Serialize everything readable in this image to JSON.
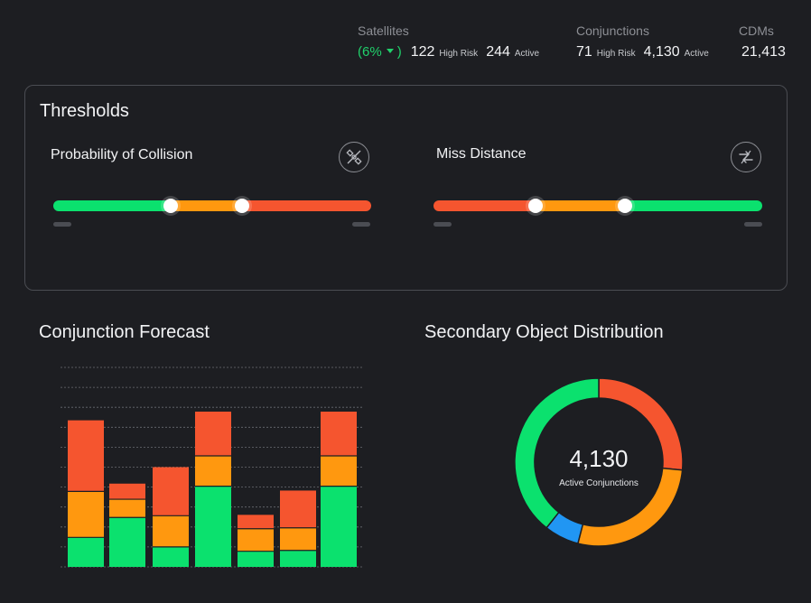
{
  "colors": {
    "green": "#0be16e",
    "orange": "#ff980f",
    "red": "#f5552f",
    "blue": "#2196f3",
    "up": "#20d16b"
  },
  "header": {
    "satellites": {
      "label": "Satellites",
      "trend": "(6%",
      "trend_close": ")",
      "high_risk_value": "122",
      "high_risk_unit": "High Risk",
      "active_value": "244",
      "active_unit": "Active"
    },
    "conjunctions": {
      "label": "Conjunctions",
      "high_risk_value": "71",
      "high_risk_unit": "High Risk",
      "active_value": "4,130",
      "active_unit": "Active"
    },
    "cdms": {
      "label": "CDMs",
      "value": "21,413"
    }
  },
  "thresholds": {
    "title": "Thresholds",
    "probability": {
      "title": "Probability of Collision",
      "icon": "satellite-off-icon",
      "knob_low": 0.37,
      "knob_high": 0.595
    },
    "miss_distance": {
      "title": "Miss Distance",
      "icon": "swap-arrows-icon",
      "knob_low": 0.31,
      "knob_high": 0.583
    }
  },
  "forecast": {
    "title": "Conjunction Forecast",
    "chart_data": {
      "type": "bar",
      "stacked": true,
      "categories": [
        "",
        "",
        "",
        "",
        "",
        "",
        ""
      ],
      "series": [
        {
          "color": "#0be16e",
          "values": [
            34,
            57,
            23,
            93,
            18,
            19,
            93
          ]
        },
        {
          "color": "#ff980f",
          "values": [
            53,
            21,
            36,
            35,
            26,
            26,
            35
          ]
        },
        {
          "color": "#f5552f",
          "values": [
            82,
            18,
            56,
            51,
            16,
            43,
            51
          ]
        }
      ],
      "ylim": [
        0,
        230
      ],
      "grid": true
    }
  },
  "distribution": {
    "title": "Secondary Object Distribution",
    "center_value": "4,130",
    "center_label": "Active Conjunctions",
    "chart_data": {
      "type": "pie",
      "donut": true,
      "slices": [
        {
          "color": "#f5552f",
          "value": 26.5
        },
        {
          "color": "#ff980f",
          "value": 27.5
        },
        {
          "color": "#2196f3",
          "value": 6.7
        },
        {
          "color": "#0be16e",
          "value": 39.3
        }
      ]
    }
  }
}
